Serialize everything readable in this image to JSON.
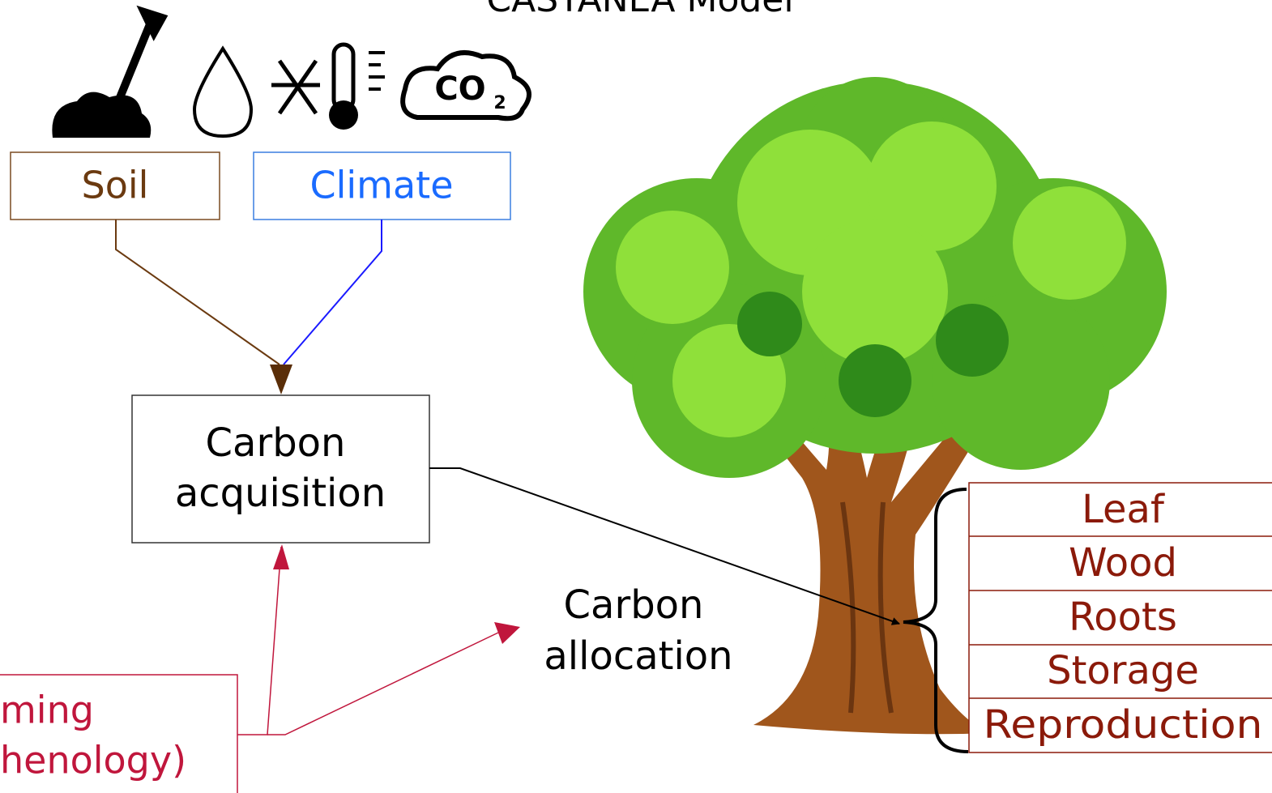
{
  "header": {
    "title": "CASTANEA Model"
  },
  "inputs": [
    {
      "label": "Soil"
    },
    {
      "label": "Climate"
    }
  ],
  "nodes": [
    {
      "label": [
        "Carbon",
        "acquisition"
      ]
    },
    {
      "label": [
        "Carbon",
        "allocation"
      ]
    },
    {
      "label": [
        "ming",
        "henology)"
      ]
    }
  ],
  "compartments": [
    "Leaf",
    "Wood",
    "Roots",
    "Storage",
    "Reproduction"
  ]
}
